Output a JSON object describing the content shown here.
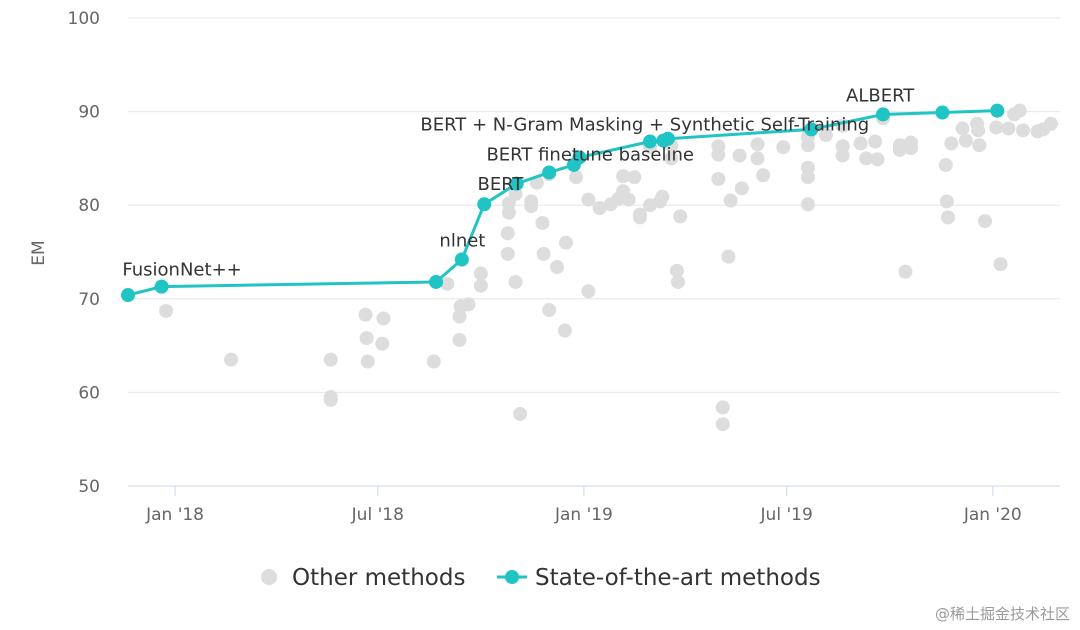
{
  "chart_data": {
    "type": "scatter",
    "title": "",
    "xlabel": "",
    "ylabel": "EM",
    "ylim": [
      50,
      100
    ],
    "xlim": [
      "2017-11-20",
      "2020-03-01"
    ],
    "y_ticks": [
      50,
      60,
      70,
      80,
      90,
      100
    ],
    "x_ticks": [
      {
        "date": "2018-01-01",
        "label": "Jan '18"
      },
      {
        "date": "2018-07-01",
        "label": "Jul '18"
      },
      {
        "date": "2019-01-01",
        "label": "Jan '19"
      },
      {
        "date": "2019-07-01",
        "label": "Jul '19"
      },
      {
        "date": "2020-01-01",
        "label": "Jan '20"
      }
    ],
    "grid": true,
    "legend_position": "bottom",
    "colors": {
      "other": "#dddddd",
      "sota": "#21c4c4",
      "grid": "#e6e6e6",
      "axis": "#ccd6eb"
    },
    "series": [
      {
        "name": "Other methods",
        "kind": "scatter",
        "points": [
          {
            "x": "2017-12-24",
            "y": 68.7
          },
          {
            "x": "2018-02-20",
            "y": 63.5
          },
          {
            "x": "2018-05-20",
            "y": 63.5
          },
          {
            "x": "2018-05-20",
            "y": 59.5
          },
          {
            "x": "2018-05-20",
            "y": 59.2
          },
          {
            "x": "2018-06-20",
            "y": 68.3
          },
          {
            "x": "2018-06-21",
            "y": 65.8
          },
          {
            "x": "2018-06-22",
            "y": 63.3
          },
          {
            "x": "2018-07-05",
            "y": 65.2
          },
          {
            "x": "2018-07-06",
            "y": 67.9
          },
          {
            "x": "2018-08-20",
            "y": 63.3
          },
          {
            "x": "2018-09-01",
            "y": 71.6
          },
          {
            "x": "2018-09-12",
            "y": 68.1
          },
          {
            "x": "2018-09-12",
            "y": 65.6
          },
          {
            "x": "2018-09-13",
            "y": 69.2
          },
          {
            "x": "2018-09-20",
            "y": 69.4
          },
          {
            "x": "2018-10-01",
            "y": 72.7
          },
          {
            "x": "2018-10-01",
            "y": 71.4
          },
          {
            "x": "2018-10-25",
            "y": 77.0
          },
          {
            "x": "2018-10-25",
            "y": 74.8
          },
          {
            "x": "2018-10-26",
            "y": 80.2
          },
          {
            "x": "2018-10-26",
            "y": 79.2
          },
          {
            "x": "2018-11-01",
            "y": 71.8
          },
          {
            "x": "2018-11-01",
            "y": 81.2
          },
          {
            "x": "2018-11-05",
            "y": 57.7
          },
          {
            "x": "2018-11-15",
            "y": 80.4
          },
          {
            "x": "2018-11-15",
            "y": 79.9
          },
          {
            "x": "2018-11-20",
            "y": 82.4
          },
          {
            "x": "2018-11-25",
            "y": 78.1
          },
          {
            "x": "2018-11-26",
            "y": 74.8
          },
          {
            "x": "2018-12-01",
            "y": 83.3
          },
          {
            "x": "2018-12-01",
            "y": 68.8
          },
          {
            "x": "2018-12-08",
            "y": 73.4
          },
          {
            "x": "2018-12-15",
            "y": 66.6
          },
          {
            "x": "2018-12-16",
            "y": 76.0
          },
          {
            "x": "2018-12-25",
            "y": 83.0
          },
          {
            "x": "2019-01-05",
            "y": 70.8
          },
          {
            "x": "2019-01-05",
            "y": 80.6
          },
          {
            "x": "2019-01-15",
            "y": 79.7
          },
          {
            "x": "2019-01-25",
            "y": 80.1
          },
          {
            "x": "2019-02-01",
            "y": 80.7
          },
          {
            "x": "2019-02-05",
            "y": 83.1
          },
          {
            "x": "2019-02-05",
            "y": 81.5
          },
          {
            "x": "2019-02-10",
            "y": 80.6
          },
          {
            "x": "2019-02-15",
            "y": 83.0
          },
          {
            "x": "2019-02-20",
            "y": 79.0
          },
          {
            "x": "2019-02-20",
            "y": 78.7
          },
          {
            "x": "2019-03-01",
            "y": 86.2
          },
          {
            "x": "2019-03-01",
            "y": 80.0
          },
          {
            "x": "2019-03-10",
            "y": 80.4
          },
          {
            "x": "2019-03-12",
            "y": 80.9
          },
          {
            "x": "2019-03-20",
            "y": 86.4
          },
          {
            "x": "2019-03-20",
            "y": 85.0
          },
          {
            "x": "2019-03-25",
            "y": 73.0
          },
          {
            "x": "2019-03-26",
            "y": 71.8
          },
          {
            "x": "2019-03-28",
            "y": 78.8
          },
          {
            "x": "2019-05-01",
            "y": 86.3
          },
          {
            "x": "2019-05-01",
            "y": 85.4
          },
          {
            "x": "2019-05-01",
            "y": 82.8
          },
          {
            "x": "2019-05-05",
            "y": 58.4
          },
          {
            "x": "2019-05-05",
            "y": 56.6
          },
          {
            "x": "2019-05-10",
            "y": 74.5
          },
          {
            "x": "2019-05-12",
            "y": 80.5
          },
          {
            "x": "2019-05-20",
            "y": 85.3
          },
          {
            "x": "2019-05-22",
            "y": 81.8
          },
          {
            "x": "2019-06-05",
            "y": 85.0
          },
          {
            "x": "2019-06-05",
            "y": 86.5
          },
          {
            "x": "2019-06-10",
            "y": 83.2
          },
          {
            "x": "2019-06-28",
            "y": 86.2
          },
          {
            "x": "2019-07-20",
            "y": 87.3
          },
          {
            "x": "2019-07-20",
            "y": 86.4
          },
          {
            "x": "2019-07-20",
            "y": 84.0
          },
          {
            "x": "2019-07-20",
            "y": 83.0
          },
          {
            "x": "2019-07-20",
            "y": 80.1
          },
          {
            "x": "2019-08-05",
            "y": 87.5
          },
          {
            "x": "2019-08-20",
            "y": 88.5
          },
          {
            "x": "2019-08-20",
            "y": 86.3
          },
          {
            "x": "2019-08-20",
            "y": 85.3
          },
          {
            "x": "2019-09-05",
            "y": 86.6
          },
          {
            "x": "2019-09-10",
            "y": 85.0
          },
          {
            "x": "2019-09-18",
            "y": 86.8
          },
          {
            "x": "2019-09-20",
            "y": 84.9
          },
          {
            "x": "2019-09-25",
            "y": 89.3
          },
          {
            "x": "2019-10-10",
            "y": 86.4
          },
          {
            "x": "2019-10-10",
            "y": 85.9
          },
          {
            "x": "2019-10-15",
            "y": 72.9
          },
          {
            "x": "2019-10-20",
            "y": 86.7
          },
          {
            "x": "2019-10-20",
            "y": 86.1
          },
          {
            "x": "2019-11-20",
            "y": 84.3
          },
          {
            "x": "2019-11-21",
            "y": 80.4
          },
          {
            "x": "2019-11-22",
            "y": 78.7
          },
          {
            "x": "2019-11-25",
            "y": 86.6
          },
          {
            "x": "2019-12-05",
            "y": 88.2
          },
          {
            "x": "2019-12-08",
            "y": 86.9
          },
          {
            "x": "2019-12-18",
            "y": 88.7
          },
          {
            "x": "2019-12-19",
            "y": 88.0
          },
          {
            "x": "2019-12-20",
            "y": 86.4
          },
          {
            "x": "2019-12-25",
            "y": 78.3
          },
          {
            "x": "2020-01-04",
            "y": 88.3
          },
          {
            "x": "2020-01-08",
            "y": 73.7
          },
          {
            "x": "2020-01-15",
            "y": 88.2
          },
          {
            "x": "2020-01-20",
            "y": 89.7
          },
          {
            "x": "2020-01-25",
            "y": 90.1
          },
          {
            "x": "2020-01-28",
            "y": 88.0
          },
          {
            "x": "2020-02-10",
            "y": 87.9
          },
          {
            "x": "2020-02-15",
            "y": 88.1
          },
          {
            "x": "2020-02-22",
            "y": 88.7
          }
        ]
      },
      {
        "name": "State-of-the-art methods",
        "kind": "line",
        "points": [
          {
            "x": "2017-11-20",
            "y": 70.4
          },
          {
            "x": "2017-12-20",
            "y": 71.3
          },
          {
            "x": "2018-08-22",
            "y": 71.8
          },
          {
            "x": "2018-09-14",
            "y": 74.2
          },
          {
            "x": "2018-10-04",
            "y": 80.1
          },
          {
            "x": "2018-11-02",
            "y": 82.3
          },
          {
            "x": "2018-12-01",
            "y": 83.5
          },
          {
            "x": "2018-12-23",
            "y": 84.3
          },
          {
            "x": "2018-12-28",
            "y": 85.1
          },
          {
            "x": "2019-03-01",
            "y": 86.8
          },
          {
            "x": "2019-03-13",
            "y": 86.9
          },
          {
            "x": "2019-03-17",
            "y": 87.1
          },
          {
            "x": "2019-07-23",
            "y": 88.1
          },
          {
            "x": "2019-09-25",
            "y": 89.7
          },
          {
            "x": "2019-11-17",
            "y": 89.9
          },
          {
            "x": "2020-01-05",
            "y": 90.1
          }
        ]
      }
    ],
    "annotations": [
      {
        "text": "FusionNet++",
        "x": "2017-11-15",
        "y": 72.5
      },
      {
        "text": "nlnet",
        "x": "2018-08-25",
        "y": 75.6
      },
      {
        "text": "BERT",
        "x": "2018-09-28",
        "y": 81.6
      },
      {
        "text": "BERT finetune baseline",
        "x": "2018-10-06",
        "y": 84.8
      },
      {
        "text": "BERT + N-Gram Masking + Synthetic Self-Training",
        "x": "2018-08-08",
        "y": 88.0
      },
      {
        "text": "ALBERT",
        "x": "2019-08-23",
        "y": 91.1
      }
    ]
  },
  "watermark": "@稀土掘金技术社区"
}
